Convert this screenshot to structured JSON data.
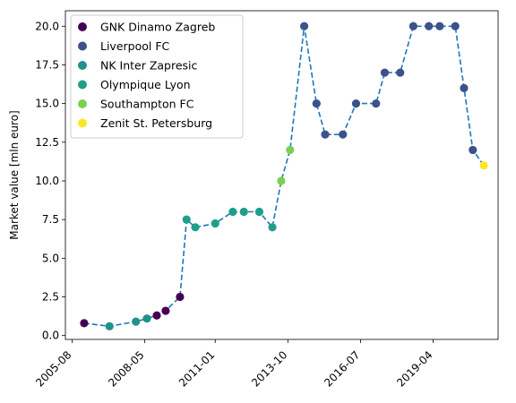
{
  "chart_data": {
    "type": "scatter",
    "title": "",
    "xlabel": "",
    "ylabel": "Market value [mln euro]",
    "x_ticks": [
      "2005-08",
      "2008-05",
      "2011-01",
      "2013-10",
      "2016-07",
      "2019-04"
    ],
    "y_ticks": [
      "0.0",
      "2.5",
      "5.0",
      "7.5",
      "10.0",
      "12.5",
      "15.0",
      "17.5",
      "20.0"
    ],
    "xlim": [
      "2005-05-01",
      "2021-09-15"
    ],
    "ylim": [
      -0.25,
      21
    ],
    "grid": false,
    "legend_position": "upper-left",
    "line": {
      "style": "dashed",
      "color": "#1f77b4"
    },
    "series": [
      {
        "name": "GNK Dinamo Zagreb",
        "color": "#440154",
        "points": [
          [
            "2006-01-15",
            0.8
          ],
          [
            "2008-10-15",
            1.3
          ],
          [
            "2009-02-15",
            1.6
          ],
          [
            "2009-09-01",
            2.5
          ]
        ]
      },
      {
        "name": "Liverpool FC",
        "color": "#3b528b",
        "points": [
          [
            "2014-05-15",
            20.0
          ],
          [
            "2014-11-01",
            15.0
          ],
          [
            "2015-03-01",
            13.0
          ],
          [
            "2015-11-01",
            13.0
          ],
          [
            "2016-05-01",
            15.0
          ],
          [
            "2017-02-01",
            15.0
          ],
          [
            "2017-06-01",
            17.0
          ],
          [
            "2018-01-01",
            17.0
          ],
          [
            "2018-07-01",
            20.0
          ],
          [
            "2019-02-01",
            20.0
          ],
          [
            "2019-07-01",
            20.0
          ],
          [
            "2020-02-01",
            20.0
          ],
          [
            "2020-06-01",
            16.0
          ],
          [
            "2020-10-01",
            12.0
          ]
        ]
      },
      {
        "name": "NK Inter Zapresic",
        "color": "#21918c",
        "points": [
          [
            "2007-01-01",
            0.6
          ],
          [
            "2008-01-01",
            0.9
          ],
          [
            "2008-06-01",
            1.1
          ]
        ]
      },
      {
        "name": "Olympique Lyon",
        "color": "#1f9e89",
        "points": [
          [
            "2009-12-01",
            7.5
          ],
          [
            "2010-04-01",
            7.0
          ],
          [
            "2011-01-01",
            7.25
          ],
          [
            "2011-09-01",
            8.0
          ],
          [
            "2012-02-01",
            8.0
          ],
          [
            "2012-09-01",
            8.0
          ],
          [
            "2013-03-01",
            7.0
          ]
        ]
      },
      {
        "name": "Southampton FC",
        "color": "#7ad151",
        "points": [
          [
            "2013-07-01",
            10.0
          ],
          [
            "2013-11-01",
            12.0
          ]
        ]
      },
      {
        "name": "Zenit St. Petersburg",
        "color": "#fde725",
        "points": [
          [
            "2021-03-01",
            11.0
          ]
        ]
      }
    ]
  }
}
